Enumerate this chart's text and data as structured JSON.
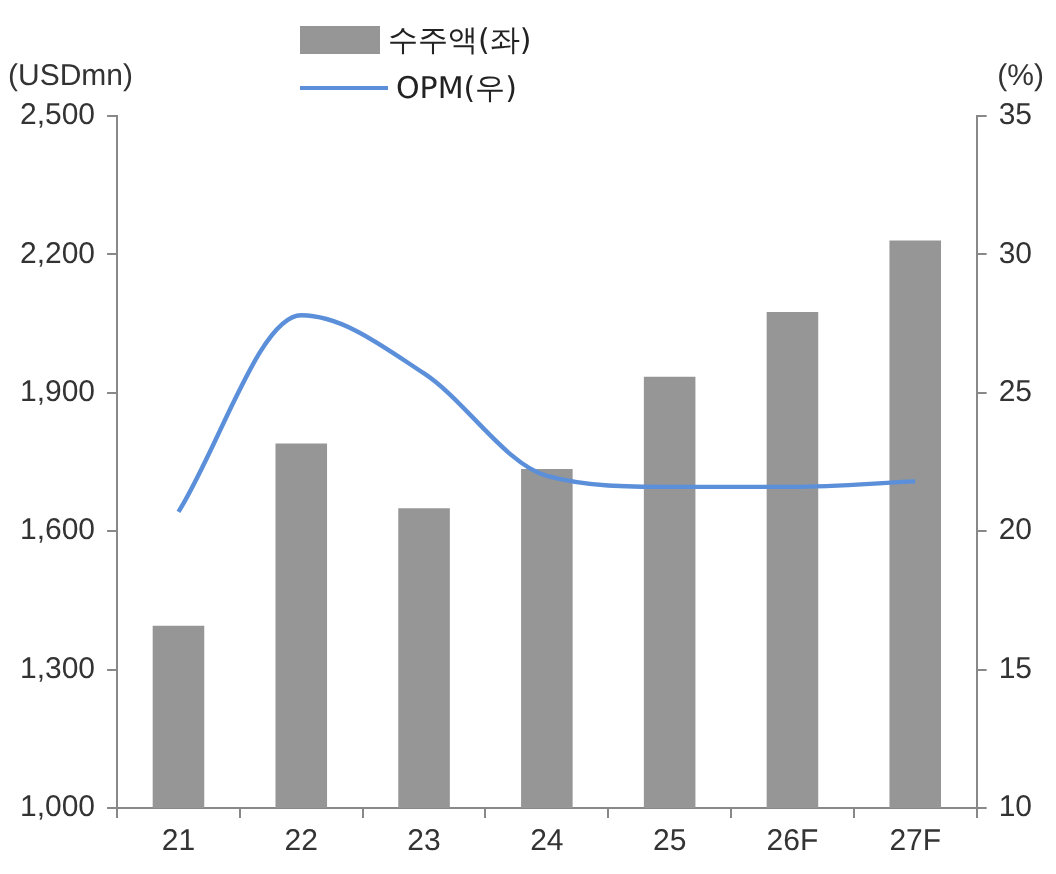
{
  "chart_data": {
    "type": "bar",
    "ylabel": "(USDmn)",
    "y2label": "(%)",
    "categories": [
      "21",
      "22",
      "23",
      "24",
      "25",
      "26F",
      "27F"
    ],
    "series": [
      {
        "name": "수주액(좌)",
        "color": "#969696",
        "values": [
          1395,
          1790,
          1650,
          1735,
          1935,
          2075,
          2230
        ]
      },
      {
        "name": "OPM(우)",
        "type": "line",
        "axis": "y2",
        "color": "#5b8fd9",
        "values": [
          20.7,
          27.8,
          25.7,
          22.0,
          21.6,
          21.6,
          21.8
        ]
      }
    ],
    "ylim": [
      1000,
      2500
    ],
    "yticks": [
      {
        "value": 1000,
        "label": "1,000"
      },
      {
        "value": 1300,
        "label": "1,300"
      },
      {
        "value": 1600,
        "label": "1,600"
      },
      {
        "value": 1900,
        "label": "1,900"
      },
      {
        "value": 2200,
        "label": "2,200"
      },
      {
        "value": 2500,
        "label": "2,500"
      }
    ],
    "y2lim": [
      10,
      35
    ],
    "y2ticks": [
      10,
      15,
      20,
      25,
      30,
      35
    ],
    "legend": "top",
    "marker": "none"
  }
}
